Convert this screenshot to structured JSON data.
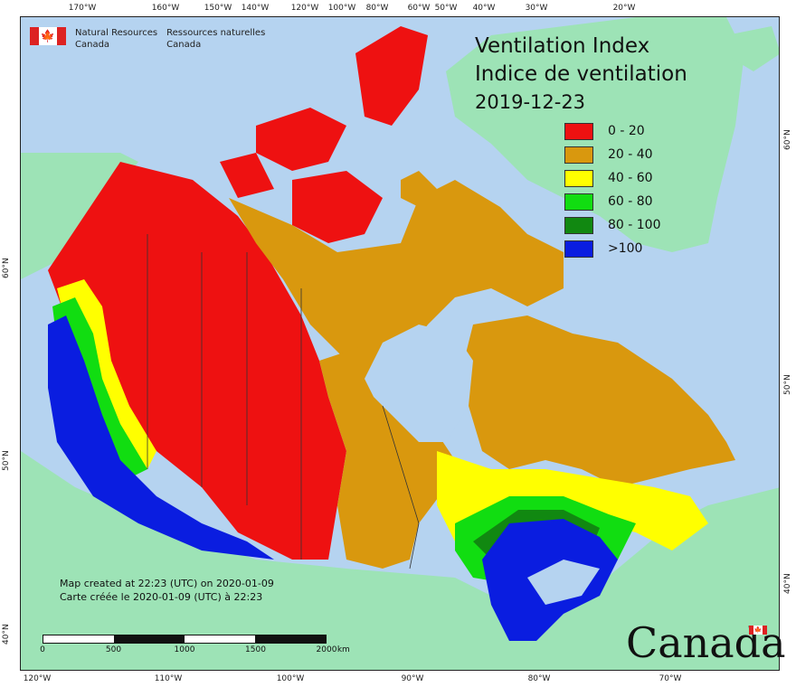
{
  "header": {
    "department_en": [
      "Natural Resources",
      "Canada"
    ],
    "department_fr": [
      "Ressources naturelles",
      "Canada"
    ]
  },
  "title": {
    "line_en": "Ventilation Index",
    "line_fr": "Indice de ventilation",
    "date": "2019-12-23"
  },
  "legend": [
    {
      "label": "0 - 20",
      "color": "#ee1111"
    },
    {
      "label": "20 - 40",
      "color": "#d9980e"
    },
    {
      "label": "40 - 60",
      "color": "#ffff00"
    },
    {
      "label": "60 - 80",
      "color": "#11dd11"
    },
    {
      "label": "80 - 100",
      "color": "#118811"
    },
    {
      "label": ">100",
      "color": "#0a1de0"
    }
  ],
  "colors": {
    "water": "#b5d3f0",
    "land_outside": "#9de3b6",
    "no_data": "#999999"
  },
  "credit": {
    "line_en": "Map created at 22:23 (UTC) on 2020-01-09",
    "line_fr": "Carte créée le 2020-01-09 (UTC) à 22:23"
  },
  "scale": {
    "labels": [
      "0",
      "500",
      "1000",
      "1500",
      "2000"
    ],
    "unit": "km"
  },
  "graticule": {
    "top": [
      "170°W",
      "160°W",
      "150°W",
      "140°W",
      "120°W",
      "100°W",
      "80°W",
      "60°W",
      "50°W",
      "40°W",
      "30°W",
      "20°W"
    ],
    "bottom": [
      "120°W",
      "110°W",
      "100°W",
      "90°W",
      "80°W",
      "70°W"
    ],
    "left": [
      "60°N",
      "50°N",
      "40°N"
    ],
    "right": [
      "60°N",
      "50°N",
      "40°N"
    ]
  },
  "wordmark": "Canada",
  "icons": [
    "canada-flag-icon",
    "maple-leaf-icon"
  ]
}
